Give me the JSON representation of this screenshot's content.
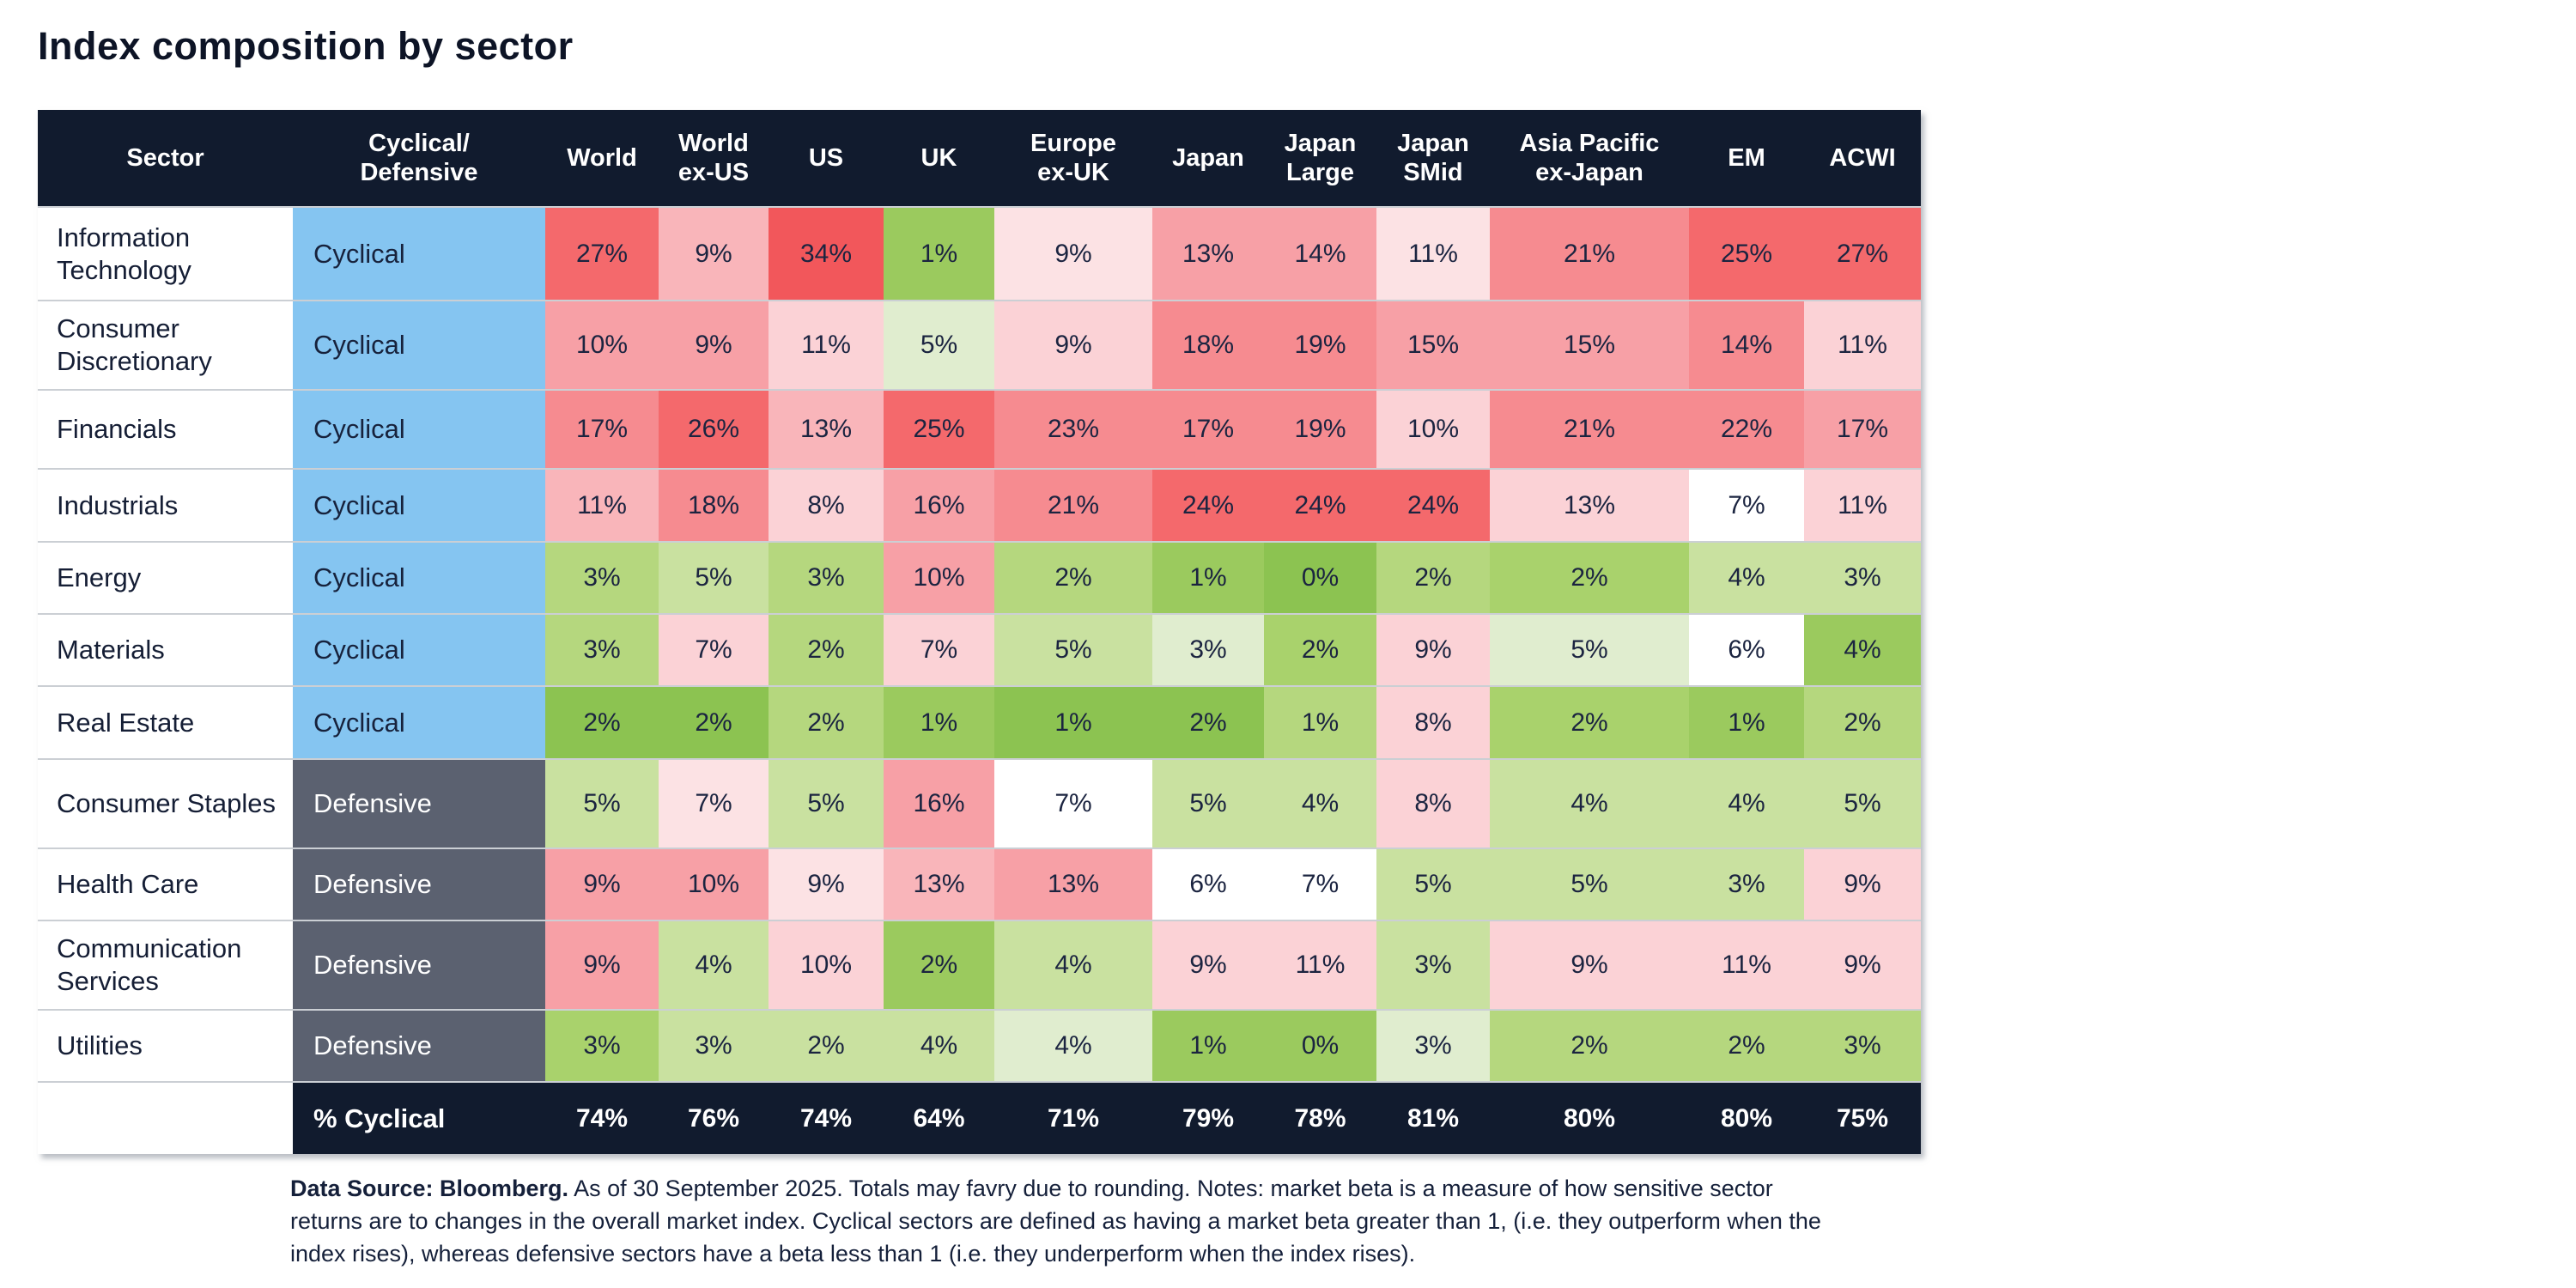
{
  "title": "Index composition by sector",
  "palette": {
    "header_bg": "#111B2E",
    "cyclical_bg": "#85C5F1",
    "defensive_bg": "#5B6170",
    "separator": "#CBCFD4",
    "g5": "#8CC351",
    "g4": "#9BCA5E",
    "g3": "#A9D26C",
    "g2": "#B5D77E",
    "g1": "#C9E1A0",
    "g0": "#E0EDCF",
    "w": "#FFFFFF",
    "r0": "#FCE2E4",
    "r1": "#FBD2D6",
    "r2": "#F9B5BA",
    "r3": "#F7A0A6",
    "r4": "#F68B90",
    "r5": "#F4696C",
    "r6": "#F2575B"
  },
  "chart_data": {
    "type": "heatmap",
    "title": "Index composition by sector",
    "legend_note": "green = low sector weight, red = high sector weight, white = neutral",
    "column_headers": [
      "Sector",
      "Cyclical/\nDefensive",
      "World",
      "World\nex-US",
      "US",
      "UK",
      "Europe\nex-UK",
      "Japan",
      "Japan\nLarge",
      "Japan\nSMid",
      "Asia Pacific\nex-Japan",
      "EM",
      "ACWI"
    ],
    "index_columns": [
      "World",
      "World ex-US",
      "US",
      "UK",
      "Europe ex-UK",
      "Japan",
      "Japan Large",
      "Japan SMid",
      "Asia Pacific ex-Japan",
      "EM",
      "ACWI"
    ],
    "rows": [
      {
        "sector": "Information Technology",
        "classification": "Cyclical",
        "values_pct": [
          27,
          9,
          34,
          1,
          9,
          13,
          14,
          11,
          21,
          25,
          27
        ],
        "shades": [
          "r5",
          "r2",
          "r6",
          "g4",
          "r0",
          "r3",
          "r3",
          "r0",
          "r4",
          "r5",
          "r5"
        ]
      },
      {
        "sector": "Consumer Discretionary",
        "classification": "Cyclical",
        "values_pct": [
          10,
          9,
          11,
          5,
          9,
          18,
          19,
          15,
          15,
          14,
          11
        ],
        "shades": [
          "r3",
          "r3",
          "r1",
          "g0",
          "r1",
          "r4",
          "r4",
          "r3",
          "r3",
          "r4",
          "r1"
        ]
      },
      {
        "sector": "Financials",
        "classification": "Cyclical",
        "values_pct": [
          17,
          26,
          13,
          25,
          23,
          17,
          19,
          10,
          21,
          22,
          17
        ],
        "shades": [
          "r4",
          "r5",
          "r2",
          "r5",
          "r4",
          "r4",
          "r4",
          "r1",
          "r4",
          "r4",
          "r3"
        ]
      },
      {
        "sector": "Industrials",
        "classification": "Cyclical",
        "values_pct": [
          11,
          18,
          8,
          16,
          21,
          24,
          24,
          24,
          13,
          7,
          11
        ],
        "shades": [
          "r2",
          "r4",
          "r1",
          "r3",
          "r4",
          "r5",
          "r5",
          "r5",
          "r1",
          "w",
          "r1"
        ]
      },
      {
        "sector": "Energy",
        "classification": "Cyclical",
        "values_pct": [
          3,
          5,
          3,
          10,
          2,
          1,
          0,
          2,
          2,
          4,
          3
        ],
        "shades": [
          "g2",
          "g1",
          "g2",
          "r3",
          "g2",
          "g4",
          "g5",
          "g2",
          "g3",
          "g1",
          "g1"
        ]
      },
      {
        "sector": "Materials",
        "classification": "Cyclical",
        "values_pct": [
          3,
          7,
          2,
          7,
          5,
          3,
          2,
          9,
          5,
          6,
          4
        ],
        "shades": [
          "g2",
          "r1",
          "g2",
          "r1",
          "g1",
          "g0",
          "g3",
          "r1",
          "g0",
          "w",
          "g4"
        ]
      },
      {
        "sector": "Real Estate",
        "classification": "Cyclical",
        "values_pct": [
          2,
          2,
          2,
          1,
          1,
          2,
          1,
          8,
          2,
          1,
          2
        ],
        "shades": [
          "g5",
          "g5",
          "g2",
          "g4",
          "g5",
          "g5",
          "g2",
          "r1",
          "g3",
          "g4",
          "g2"
        ]
      },
      {
        "sector": "Consumer Staples",
        "classification": "Defensive",
        "values_pct": [
          5,
          7,
          5,
          16,
          7,
          5,
          4,
          8,
          4,
          4,
          5
        ],
        "shades": [
          "g1",
          "r0",
          "g1",
          "r3",
          "w",
          "g1",
          "g1",
          "r1",
          "g1",
          "g1",
          "g1"
        ]
      },
      {
        "sector": "Health Care",
        "classification": "Defensive",
        "values_pct": [
          9,
          10,
          9,
          13,
          13,
          6,
          7,
          5,
          5,
          3,
          9
        ],
        "shades": [
          "r3",
          "r3",
          "r0",
          "r2",
          "r3",
          "w",
          "w",
          "g1",
          "g1",
          "g1",
          "r1"
        ]
      },
      {
        "sector": "Communication Services",
        "classification": "Defensive",
        "values_pct": [
          9,
          4,
          10,
          2,
          4,
          9,
          11,
          3,
          9,
          11,
          9
        ],
        "shades": [
          "r3",
          "g1",
          "r1",
          "g4",
          "g1",
          "r1",
          "r1",
          "g1",
          "r1",
          "r1",
          "r1"
        ]
      },
      {
        "sector": "Utilities",
        "classification": "Defensive",
        "values_pct": [
          3,
          3,
          2,
          4,
          4,
          1,
          0,
          3,
          2,
          2,
          3
        ],
        "shades": [
          "g3",
          "g1",
          "g1",
          "g1",
          "g0",
          "g4",
          "g4",
          "g0",
          "g2",
          "g2",
          "g2"
        ]
      }
    ],
    "footer_row": {
      "label": "% Cyclical",
      "values_pct": [
        74,
        76,
        74,
        64,
        71,
        79,
        78,
        81,
        80,
        80,
        75
      ]
    }
  },
  "footnote": {
    "bold": "Data Source: Bloomberg.",
    "text": " As of 30 September 2025. Totals may favry due to rounding. Notes: market beta is a measure of how sensitive sector returns are to changes in the overall market index. Cyclical sectors are defined as having a market beta greater than 1, (i.e. they outperform when the index rises), whereas defensive sectors have a beta less than 1 (i.e. they underperform when the index rises)."
  }
}
